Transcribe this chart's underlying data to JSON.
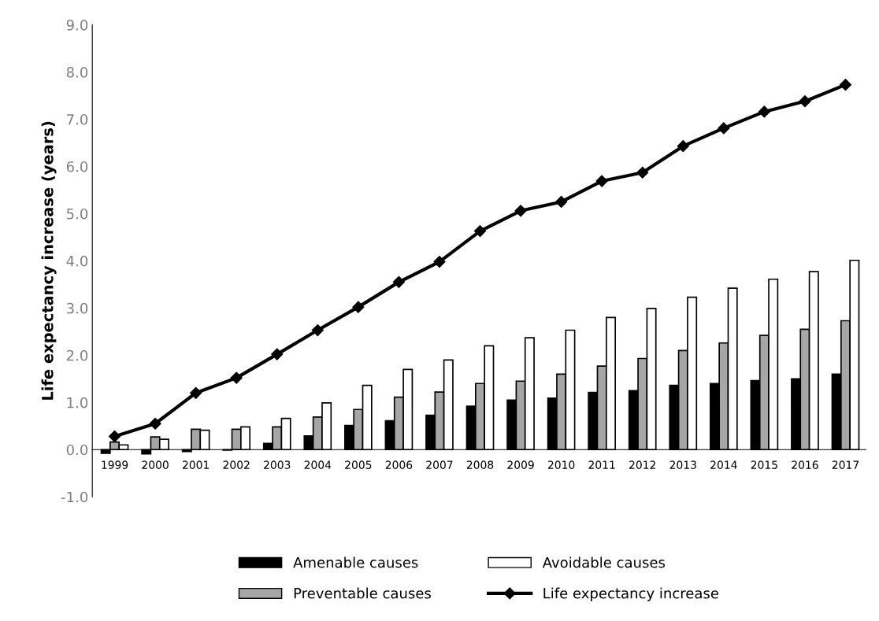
{
  "chart_data": {
    "type": "bar",
    "ylabel": "Life expectancy increase (years)",
    "categories": [
      "1999",
      "2000",
      "2001",
      "2002",
      "2003",
      "2004",
      "2005",
      "2006",
      "2007",
      "2008",
      "2009",
      "2010",
      "2011",
      "2012",
      "2013",
      "2014",
      "2015",
      "2016",
      "2017"
    ],
    "series": [
      {
        "name": "Amenable causes",
        "color": "#000000",
        "values": [
          -0.08,
          -0.09,
          -0.04,
          -0.01,
          0.13,
          0.29,
          0.51,
          0.61,
          0.73,
          0.92,
          1.05,
          1.09,
          1.21,
          1.25,
          1.36,
          1.4,
          1.46,
          1.5,
          1.6
        ]
      },
      {
        "name": "Preventable causes",
        "color": "#a6a6a6",
        "values": [
          0.16,
          0.27,
          0.43,
          0.43,
          0.48,
          0.69,
          0.85,
          1.11,
          1.22,
          1.4,
          1.45,
          1.6,
          1.77,
          1.93,
          2.1,
          2.26,
          2.42,
          2.55,
          2.73
        ]
      },
      {
        "name": "Avoidable causes",
        "color": "#ffffff",
        "values": [
          0.1,
          0.22,
          0.41,
          0.48,
          0.66,
          0.99,
          1.36,
          1.7,
          1.9,
          2.2,
          2.37,
          2.53,
          2.8,
          2.99,
          3.23,
          3.42,
          3.61,
          3.77,
          4.01
        ]
      },
      {
        "name": "Life expectancy increase",
        "color": "#000000",
        "type": "line",
        "marker": "diamond",
        "values": [
          0.28,
          0.55,
          1.2,
          1.52,
          2.02,
          2.53,
          3.02,
          3.55,
          3.98,
          4.63,
          5.06,
          5.25,
          5.69,
          5.87,
          6.43,
          6.81,
          7.16,
          7.38,
          7.73
        ]
      }
    ],
    "ylim": [
      -1.0,
      9.0
    ],
    "yticks": [
      {
        "value": -1,
        "label": "-1.0"
      },
      {
        "value": 0,
        "label": "0.0"
      },
      {
        "value": 1,
        "label": "1.0"
      },
      {
        "value": 2,
        "label": "2.0"
      },
      {
        "value": 3,
        "label": "3.0"
      },
      {
        "value": 4,
        "label": "4.0"
      },
      {
        "value": 5,
        "label": "5.0"
      },
      {
        "value": 6,
        "label": "6.0"
      },
      {
        "value": 7,
        "label": "7.0"
      },
      {
        "value": 8,
        "label": "8.0"
      },
      {
        "value": 9,
        "label": "9.0"
      }
    ],
    "grid": false,
    "legend": "bottom"
  }
}
